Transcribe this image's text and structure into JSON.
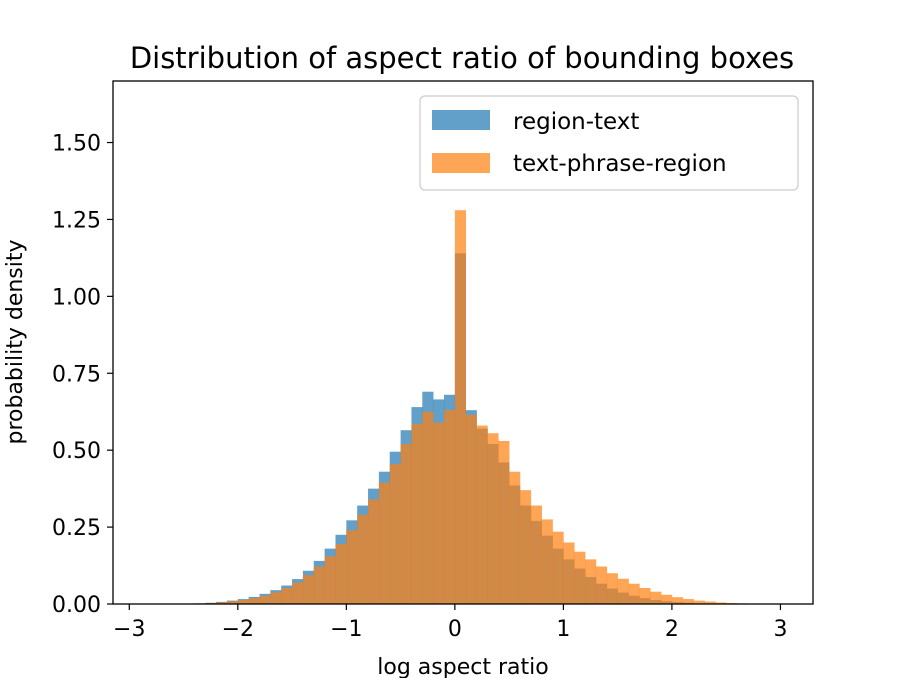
{
  "chart_data": {
    "type": "bar",
    "title": "Distribution of aspect ratio of bounding boxes",
    "xlabel": "log aspect ratio",
    "ylabel": "probability density",
    "xlim": [
      -3.15,
      3.3
    ],
    "ylim": [
      0,
      1.7
    ],
    "x_ticks": [
      -3,
      -2,
      -1,
      0,
      1,
      2,
      3
    ],
    "x_tick_labels": [
      "−3",
      "−2",
      "−1",
      "0",
      "1",
      "2",
      "3"
    ],
    "y_ticks": [
      0.0,
      0.25,
      0.5,
      0.75,
      1.0,
      1.25,
      1.5
    ],
    "y_tick_labels": [
      "0.00",
      "0.25",
      "0.50",
      "0.75",
      "1.00",
      "1.25",
      "1.50"
    ],
    "grid": false,
    "legend_position": "top-right",
    "bin_width": 0.1,
    "bin_centers": [
      -2.95,
      -2.85,
      -2.75,
      -2.65,
      -2.55,
      -2.45,
      -2.35,
      -2.25,
      -2.15,
      -2.05,
      -1.95,
      -1.85,
      -1.75,
      -1.65,
      -1.55,
      -1.45,
      -1.35,
      -1.25,
      -1.15,
      -1.05,
      -0.95,
      -0.85,
      -0.75,
      -0.65,
      -0.55,
      -0.45,
      -0.35,
      -0.25,
      -0.15,
      -0.05,
      0.05,
      0.15,
      0.25,
      0.35,
      0.45,
      0.55,
      0.65,
      0.75,
      0.85,
      0.95,
      1.05,
      1.15,
      1.25,
      1.35,
      1.45,
      1.55,
      1.65,
      1.75,
      1.85,
      1.95,
      2.05,
      2.15,
      2.25,
      2.35,
      2.45,
      2.55,
      2.65,
      2.75,
      2.85,
      2.95
    ],
    "series": [
      {
        "name": "region-text",
        "color": "#1f77b4",
        "values": [
          0.0,
          0.0,
          0.0,
          0.0,
          0.0,
          0.001,
          0.002,
          0.004,
          0.007,
          0.011,
          0.016,
          0.023,
          0.033,
          0.045,
          0.06,
          0.081,
          0.108,
          0.14,
          0.18,
          0.225,
          0.272,
          0.32,
          0.375,
          0.43,
          0.495,
          0.565,
          0.64,
          0.69,
          0.665,
          0.68,
          1.14,
          0.63,
          0.57,
          0.52,
          0.46,
          0.385,
          0.32,
          0.27,
          0.222,
          0.18,
          0.145,
          0.115,
          0.088,
          0.066,
          0.05,
          0.037,
          0.027,
          0.019,
          0.013,
          0.009,
          0.006,
          0.004,
          0.002,
          0.001,
          0.001,
          0.0,
          0.0,
          0.0,
          0.0,
          0.0
        ]
      },
      {
        "name": "text-phrase-region",
        "color": "#ff7f0e",
        "values": [
          0.0,
          0.0,
          0.0,
          0.0,
          0.0,
          0.001,
          0.002,
          0.003,
          0.006,
          0.009,
          0.013,
          0.019,
          0.027,
          0.038,
          0.052,
          0.07,
          0.094,
          0.122,
          0.155,
          0.195,
          0.24,
          0.29,
          0.34,
          0.395,
          0.455,
          0.52,
          0.585,
          0.625,
          0.59,
          0.63,
          1.28,
          0.615,
          0.58,
          0.555,
          0.53,
          0.43,
          0.37,
          0.32,
          0.275,
          0.235,
          0.2,
          0.17,
          0.145,
          0.122,
          0.1,
          0.082,
          0.066,
          0.052,
          0.04,
          0.03,
          0.022,
          0.016,
          0.011,
          0.008,
          0.005,
          0.003,
          0.002,
          0.001,
          0.001,
          0.0
        ]
      }
    ]
  }
}
